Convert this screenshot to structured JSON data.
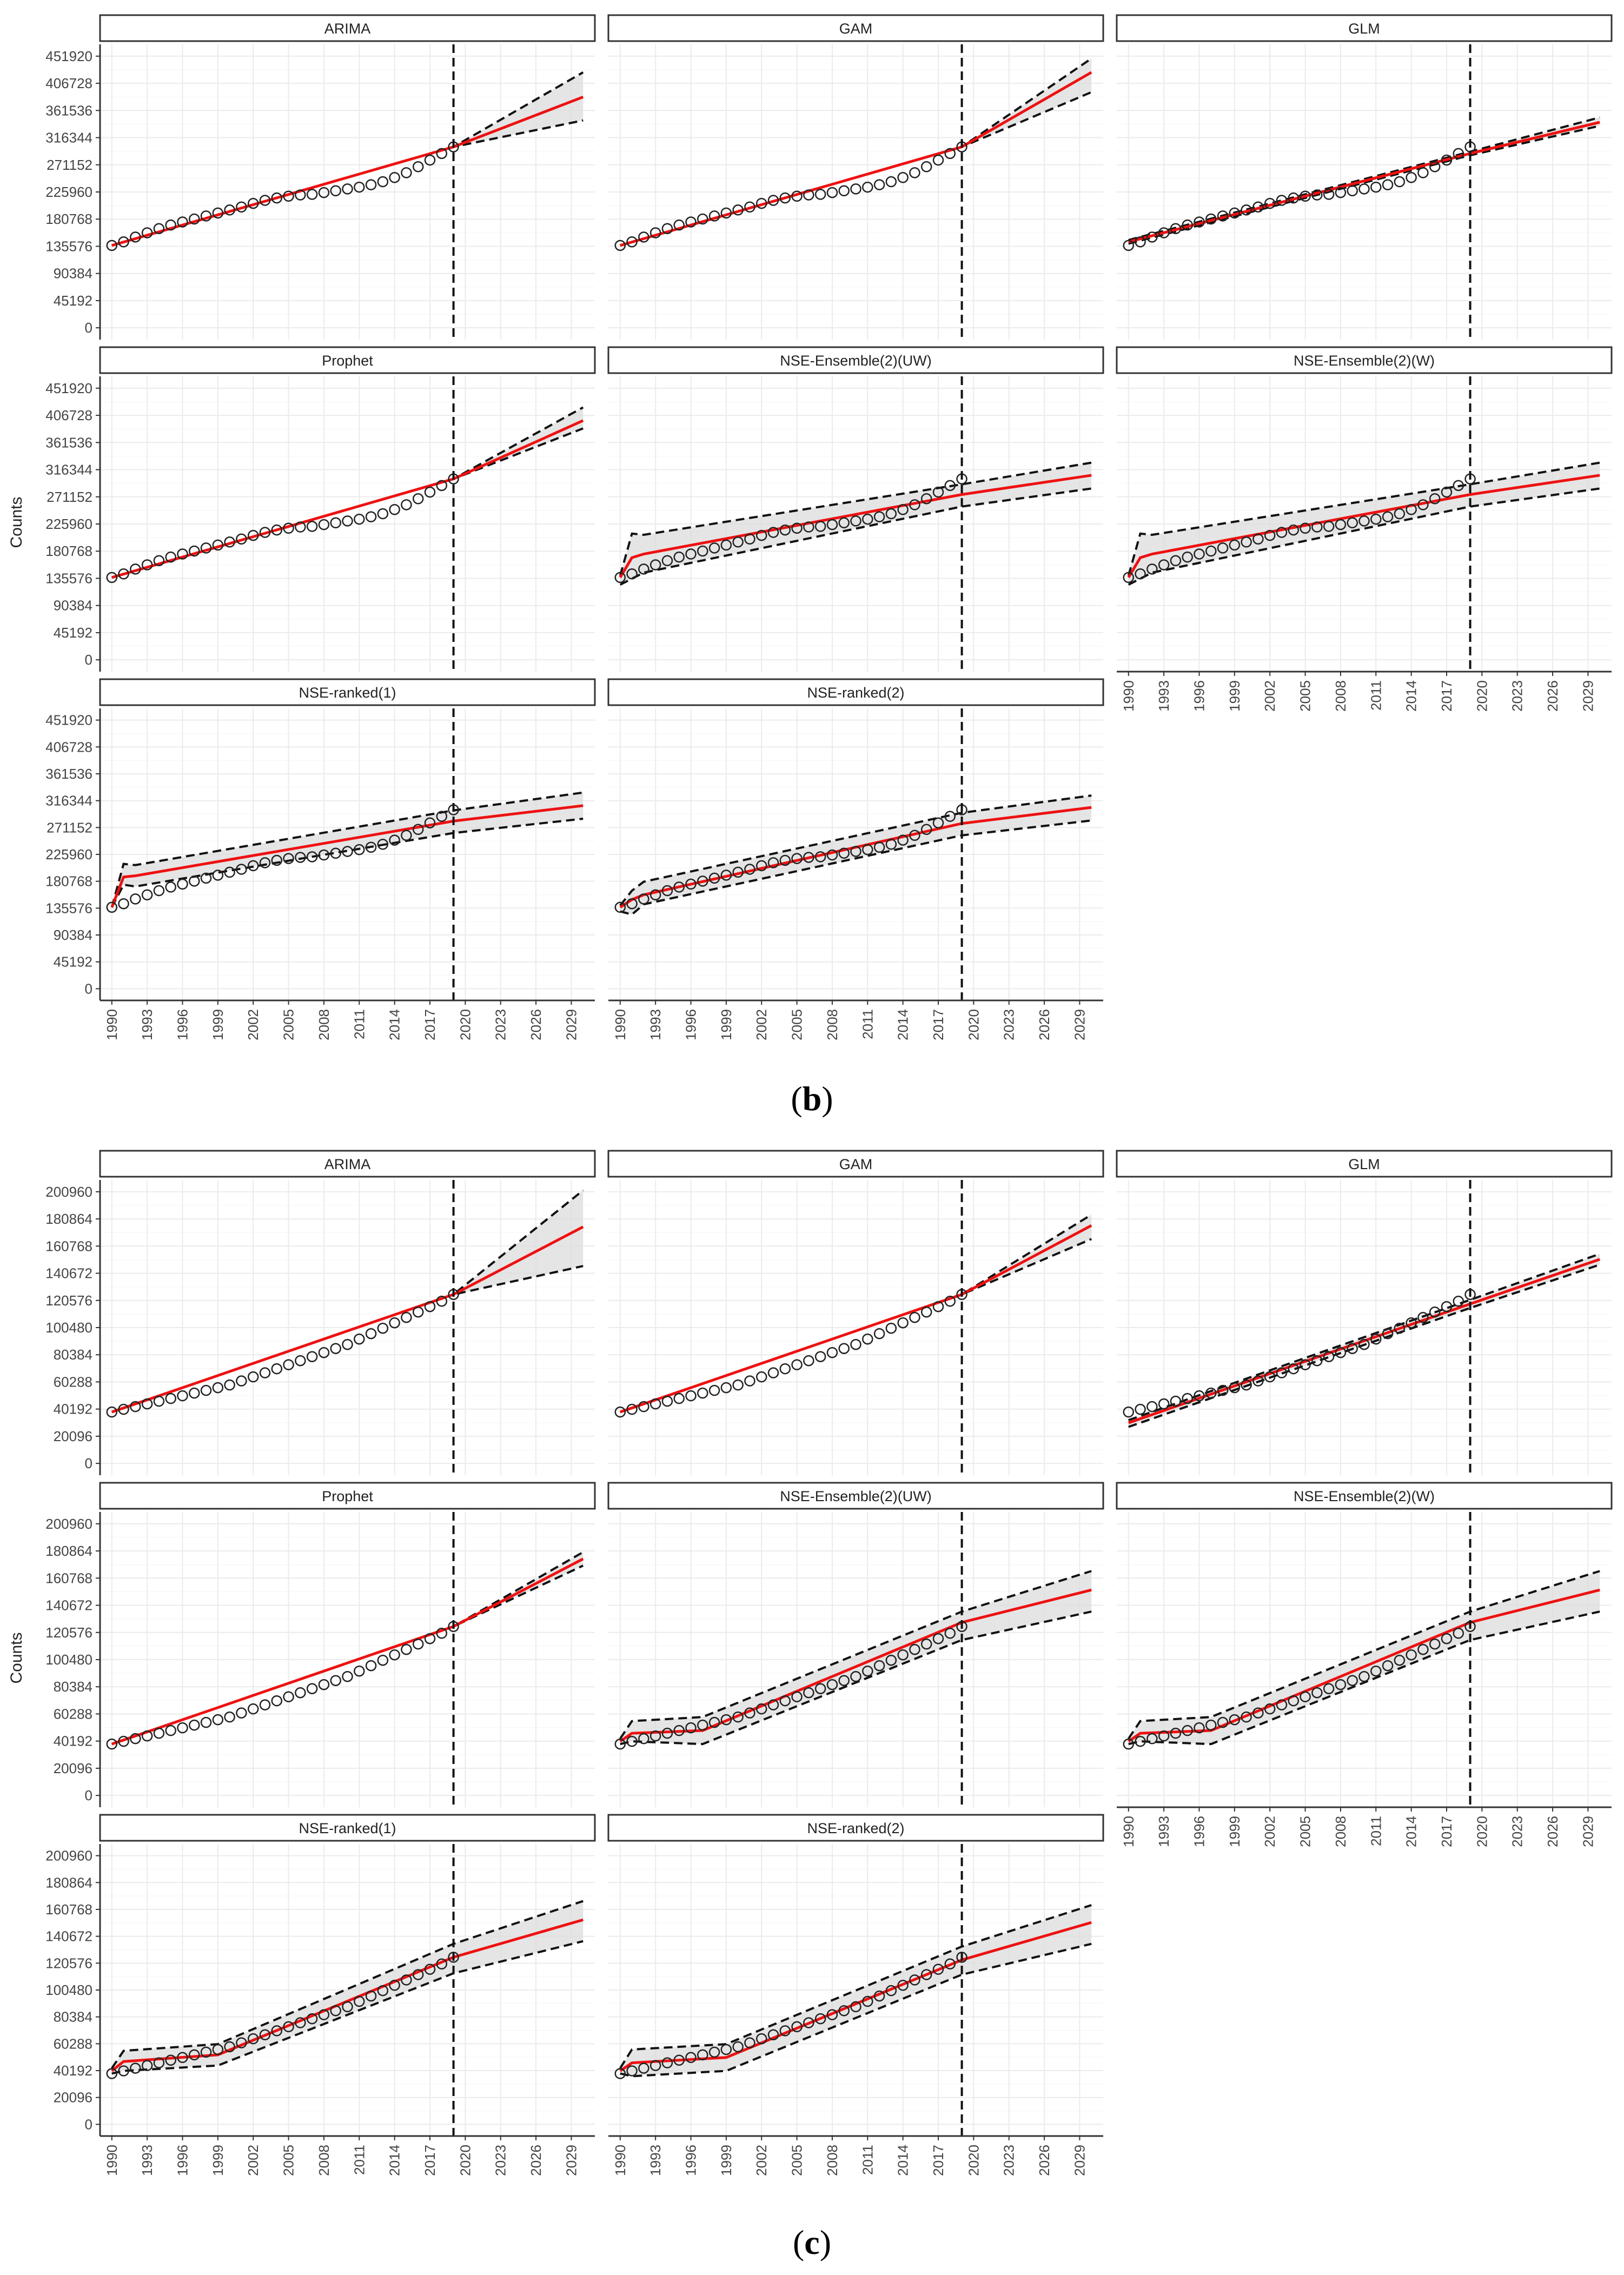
{
  "figures": [
    {
      "caption_label": "b",
      "ylabel": "Counts",
      "yticks": [
        0,
        45192,
        90384,
        135576,
        180768,
        225960,
        271152,
        316344,
        361536,
        406728,
        451920
      ],
      "xticks": [
        1990,
        1993,
        1996,
        1999,
        2002,
        2005,
        2008,
        2011,
        2014,
        2017,
        2020,
        2023,
        2026,
        2029
      ],
      "forecast_start": 2019,
      "panels": [
        {
          "title": "ARIMA"
        },
        {
          "title": "GAM"
        },
        {
          "title": "GLM"
        },
        {
          "title": "Prophet"
        },
        {
          "title": "NSE-Ensemble(2)(UW)"
        },
        {
          "title": "NSE-Ensemble(2)(W)"
        },
        {
          "title": "NSE-ranked(1)"
        },
        {
          "title": "NSE-ranked(2)"
        }
      ]
    },
    {
      "caption_label": "c",
      "ylabel": "Counts",
      "yticks": [
        0,
        20096,
        40192,
        60288,
        80384,
        100480,
        120576,
        140672,
        160768,
        180864,
        200960
      ],
      "xticks": [
        1990,
        1993,
        1996,
        1999,
        2002,
        2005,
        2008,
        2011,
        2014,
        2017,
        2020,
        2023,
        2026,
        2029
      ],
      "forecast_start": 2019,
      "panels": [
        {
          "title": "ARIMA"
        },
        {
          "title": "GAM"
        },
        {
          "title": "GLM"
        },
        {
          "title": "Prophet"
        },
        {
          "title": "NSE-Ensemble(2)(UW)"
        },
        {
          "title": "NSE-Ensemble(2)(W)"
        },
        {
          "title": "NSE-ranked(1)"
        },
        {
          "title": "NSE-ranked(2)"
        }
      ]
    }
  ],
  "chart_data": [
    {
      "type": "line",
      "ylim": [
        0,
        451920
      ],
      "xlim": [
        1990,
        2030
      ],
      "observed": {
        "x": [
          1990,
          1991,
          1992,
          1993,
          1994,
          1995,
          1996,
          1997,
          1998,
          1999,
          2000,
          2001,
          2002,
          2003,
          2004,
          2005,
          2006,
          2007,
          2008,
          2009,
          2010,
          2011,
          2012,
          2013,
          2014,
          2015,
          2016,
          2017,
          2018,
          2019
        ],
        "y": [
          137000,
          143000,
          151000,
          158000,
          165000,
          171000,
          176000,
          181000,
          186000,
          191000,
          196000,
          201000,
          207000,
          212000,
          216000,
          219000,
          221000,
          222000,
          225000,
          228000,
          231000,
          234000,
          238000,
          243000,
          250000,
          258000,
          268000,
          279000,
          290000,
          301000
        ]
      },
      "panels": [
        {
          "title": "ARIMA",
          "fit_x": [
            1990,
            2019,
            2030
          ],
          "fit": [
            137000,
            301000,
            384000
          ],
          "lower": [
            137000,
            301000,
            345000
          ],
          "upper": [
            137000,
            301000,
            425000
          ]
        },
        {
          "title": "GAM",
          "fit_x": [
            1990,
            2019,
            2030
          ],
          "fit": [
            137000,
            301000,
            425000
          ],
          "lower": [
            137000,
            301000,
            392000
          ],
          "upper": [
            137000,
            301000,
            448000
          ]
        },
        {
          "title": "GLM",
          "fit_x": [
            1990,
            2019,
            2030
          ],
          "fit": [
            143000,
            290000,
            342000
          ],
          "lower": [
            140000,
            287000,
            336000
          ],
          "upper": [
            146000,
            293000,
            350000
          ]
        },
        {
          "title": "Prophet",
          "fit_x": [
            1990,
            2019,
            2030
          ],
          "fit": [
            137000,
            301000,
            398000
          ],
          "lower": [
            137000,
            301000,
            385000
          ],
          "upper": [
            137000,
            301000,
            420000
          ]
        },
        {
          "title": "NSE-Ensemble(2)(UW)",
          "fit_x": [
            1990,
            1991,
            1992,
            2019,
            2030
          ],
          "fit": [
            137000,
            170000,
            176000,
            275000,
            307000
          ],
          "lower": [
            125000,
            135000,
            145000,
            255000,
            285000
          ],
          "upper": [
            140000,
            210000,
            208000,
            292000,
            328000
          ]
        },
        {
          "title": "NSE-Ensemble(2)(W)",
          "fit_x": [
            1990,
            1991,
            1992,
            2019,
            2030
          ],
          "fit": [
            137000,
            170000,
            176000,
            275000,
            307000
          ],
          "lower": [
            125000,
            135000,
            145000,
            255000,
            285000
          ],
          "upper": [
            140000,
            210000,
            208000,
            292000,
            328000
          ]
        },
        {
          "title": "NSE-ranked(1)",
          "fit_x": [
            1990,
            1991,
            1992,
            2019,
            2030
          ],
          "fit": [
            137000,
            188000,
            190000,
            282000,
            308000
          ],
          "lower": [
            137000,
            175000,
            172000,
            262000,
            286000
          ],
          "upper": [
            137000,
            210000,
            208000,
            300000,
            330000
          ]
        },
        {
          "title": "NSE-ranked(2)",
          "fit_x": [
            1990,
            1991,
            1992,
            2019,
            2030
          ],
          "fit": [
            137000,
            150000,
            158000,
            278000,
            305000
          ],
          "lower": [
            130000,
            125000,
            142000,
            258000,
            283000
          ],
          "upper": [
            140000,
            165000,
            180000,
            296000,
            325000
          ]
        }
      ]
    },
    {
      "type": "line",
      "ylim": [
        0,
        200960
      ],
      "xlim": [
        1990,
        2030
      ],
      "observed": {
        "x": [
          1990,
          1991,
          1992,
          1993,
          1994,
          1995,
          1996,
          1997,
          1998,
          1999,
          2000,
          2001,
          2002,
          2003,
          2004,
          2005,
          2006,
          2007,
          2008,
          2009,
          2010,
          2011,
          2012,
          2013,
          2014,
          2015,
          2016,
          2017,
          2018,
          2019
        ],
        "y": [
          38000,
          40000,
          42000,
          44000,
          46000,
          48000,
          50000,
          52000,
          54000,
          56000,
          58000,
          61000,
          64000,
          67000,
          70000,
          73000,
          76000,
          79000,
          82000,
          85000,
          88000,
          92000,
          96000,
          100000,
          104000,
          108000,
          112000,
          116000,
          120000,
          125000
        ]
      },
      "panels": [
        {
          "title": "ARIMA",
          "fit_x": [
            1990,
            2019,
            2030
          ],
          "fit": [
            38000,
            125000,
            175000
          ],
          "lower": [
            38000,
            125000,
            146000
          ],
          "upper": [
            38000,
            125000,
            202000
          ]
        },
        {
          "title": "GAM",
          "fit_x": [
            1990,
            2019,
            2030
          ],
          "fit": [
            38000,
            125000,
            176000
          ],
          "lower": [
            38000,
            125000,
            166000
          ],
          "upper": [
            38000,
            125000,
            184000
          ]
        },
        {
          "title": "GLM",
          "fit_x": [
            1990,
            2019,
            2030
          ],
          "fit": [
            30000,
            118000,
            151000
          ],
          "lower": [
            27000,
            115000,
            147000
          ],
          "upper": [
            32000,
            121000,
            155000
          ]
        },
        {
          "title": "Prophet",
          "fit_x": [
            1990,
            2019,
            2030
          ],
          "fit": [
            38000,
            125000,
            175000
          ],
          "lower": [
            38000,
            125000,
            170000
          ],
          "upper": [
            38000,
            125000,
            180000
          ]
        },
        {
          "title": "NSE-Ensemble(2)(UW)",
          "fit_x": [
            1990,
            1991,
            1997,
            2019,
            2030
          ],
          "fit": [
            40000,
            46000,
            48000,
            128000,
            152000
          ],
          "lower": [
            38000,
            40000,
            38000,
            115000,
            136000
          ],
          "upper": [
            42000,
            55000,
            58000,
            136000,
            166000
          ]
        },
        {
          "title": "NSE-Ensemble(2)(W)",
          "fit_x": [
            1990,
            1991,
            1997,
            2019,
            2030
          ],
          "fit": [
            40000,
            46000,
            48000,
            128000,
            152000
          ],
          "lower": [
            38000,
            40000,
            38000,
            115000,
            136000
          ],
          "upper": [
            42000,
            55000,
            58000,
            136000,
            166000
          ]
        },
        {
          "title": "NSE-ranked(1)",
          "fit_x": [
            1990,
            1991,
            1999,
            2019,
            2030
          ],
          "fit": [
            40000,
            47000,
            52000,
            125000,
            153000
          ],
          "lower": [
            38000,
            40000,
            44000,
            113000,
            137000
          ],
          "upper": [
            42000,
            55000,
            60000,
            135000,
            167000
          ]
        },
        {
          "title": "NSE-ranked(2)",
          "fit_x": [
            1990,
            1991,
            1999,
            2019,
            2030
          ],
          "fit": [
            40000,
            46000,
            50000,
            123000,
            151000
          ],
          "lower": [
            38000,
            36000,
            40000,
            112000,
            135000
          ],
          "upper": [
            42000,
            56000,
            60000,
            133000,
            164000
          ]
        }
      ]
    }
  ]
}
